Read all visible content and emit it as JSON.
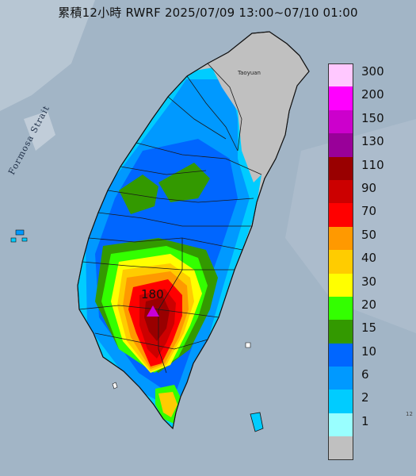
{
  "title": "累積12小時 RWRF 2025/07/09 13:00~07/10 01:00",
  "strait_label": "Formosa Strait",
  "peak": {
    "value": "180"
  },
  "city_label": "Taoyuan",
  "edge_label": "12",
  "legend": {
    "levels": [
      {
        "label": "300",
        "color": "#ffc8ff"
      },
      {
        "label": "200",
        "color": "#ff00ff"
      },
      {
        "label": "150",
        "color": "#cc00cc"
      },
      {
        "label": "130",
        "color": "#990099"
      },
      {
        "label": "110",
        "color": "#990000"
      },
      {
        "label": "90",
        "color": "#cc0000"
      },
      {
        "label": "70",
        "color": "#ff0000"
      },
      {
        "label": "50",
        "color": "#ff9900"
      },
      {
        "label": "40",
        "color": "#ffcc00"
      },
      {
        "label": "30",
        "color": "#ffff00"
      },
      {
        "label": "20",
        "color": "#33ff00"
      },
      {
        "label": "15",
        "color": "#339900"
      },
      {
        "label": "10",
        "color": "#0066ff"
      },
      {
        "label": "6",
        "color": "#0099ff"
      },
      {
        "label": "2",
        "color": "#00ccff"
      },
      {
        "label": "1",
        "color": "#99ffff"
      },
      {
        "label": "",
        "color": "#c0c0c0"
      }
    ]
  }
}
